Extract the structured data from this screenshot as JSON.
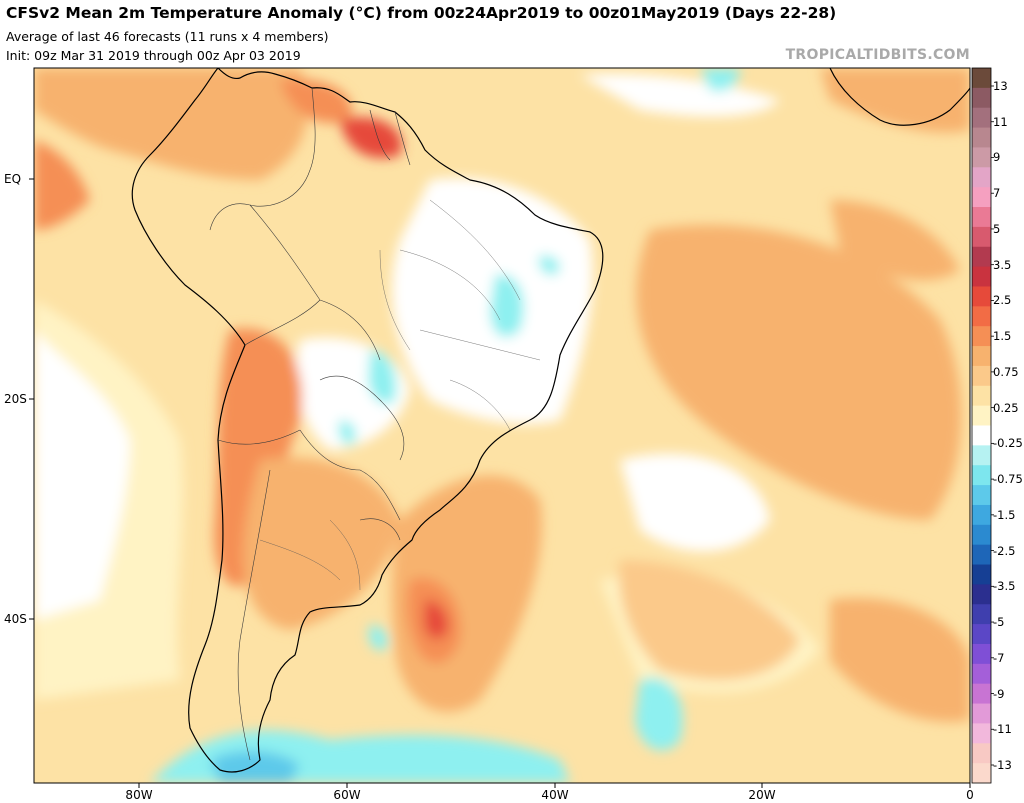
{
  "header": {
    "title": "CFSv2 Mean 2m Temperature Anomaly (°C) from 00z24Apr2019 to 00z01May2019 (Days 22-28)",
    "subtitle_1": "Average of last 46 forecasts (11 runs x 4 members)",
    "subtitle_2": "Init: 09z Mar 31 2019 through 00z Apr 03 2019",
    "watermark": "TROPICALTIDBITS.COM"
  },
  "axes": {
    "lat_labels": [
      "EQ",
      "20S",
      "40S"
    ],
    "lon_labels": [
      "80W",
      "60W",
      "40W",
      "20W",
      "0"
    ]
  },
  "colorbar": {
    "labels": [
      "13",
      "11",
      "9",
      "7",
      "5",
      "3.5",
      "2.5",
      "1.5",
      "0.75",
      "0.25",
      "-0.25",
      "-0.75",
      "-1.5",
      "-2.5",
      "-3.5",
      "-5",
      "-7",
      "-9",
      "-11",
      "-13"
    ],
    "colors": [
      "#6b4a3a",
      "#8c5a63",
      "#a3707d",
      "#b8878f",
      "#cc9aa6",
      "#e3a5c7",
      "#f5a0c0",
      "#ea7a95",
      "#d85a6e",
      "#b23a4f",
      "#c9333f",
      "#e64a3a",
      "#f26c45",
      "#f58f55",
      "#f7b26e",
      "#fbc98a",
      "#fde2a5",
      "#fff3c4",
      "#ffffff",
      "#b6f2f2",
      "#7de6ee",
      "#5dc9ea",
      "#3ea8e0",
      "#2b8ad0",
      "#1e66b8",
      "#163f94",
      "#2b2f8f",
      "#3f3fae",
      "#5b47c6",
      "#7f4fd6",
      "#a45fd9",
      "#c874d3",
      "#e29ad8",
      "#f2b8dc",
      "#f8c9c4",
      "#fbd9cc"
    ]
  },
  "field": {
    "ocean_base": "#fde2a5",
    "warm_light": "#fbc98a",
    "warm": "#f7b26e",
    "warm_strong": "#f58f55",
    "warm_hot": "#e64a3a",
    "neutral": "#ffffff",
    "pale": "#fff3c4",
    "cool": "#8ef0f0",
    "cool_strong": "#5dc9ea"
  }
}
